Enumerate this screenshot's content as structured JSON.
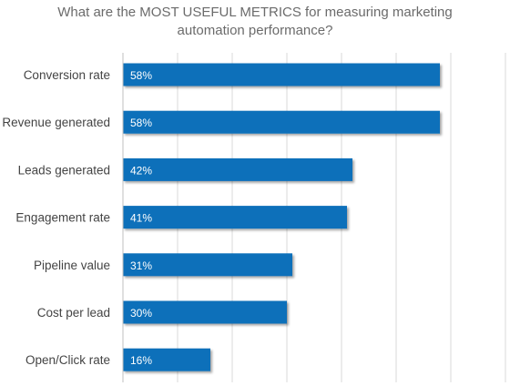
{
  "chart_data": {
    "type": "bar",
    "orientation": "horizontal",
    "title": "What are the MOST USEFUL METRICS for measuring marketing automation performance?",
    "categories": [
      "Conversion rate",
      "Revenue generated",
      "Leads generated",
      "Engagement rate",
      "Pipeline value",
      "Cost per lead",
      "Open/Click rate"
    ],
    "values": [
      58,
      58,
      42,
      41,
      31,
      30,
      16
    ],
    "data_labels": [
      "58%",
      "58%",
      "42%",
      "41%",
      "31%",
      "30%",
      "16%"
    ],
    "xlim": [
      0,
      70
    ],
    "grid": true,
    "legend": "none",
    "bar_color": "#0e6fba",
    "label_color": "#ffffff",
    "grid_color": "#d9d9d9",
    "text_color": "#444444",
    "title_color": "#6b6b6b"
  }
}
